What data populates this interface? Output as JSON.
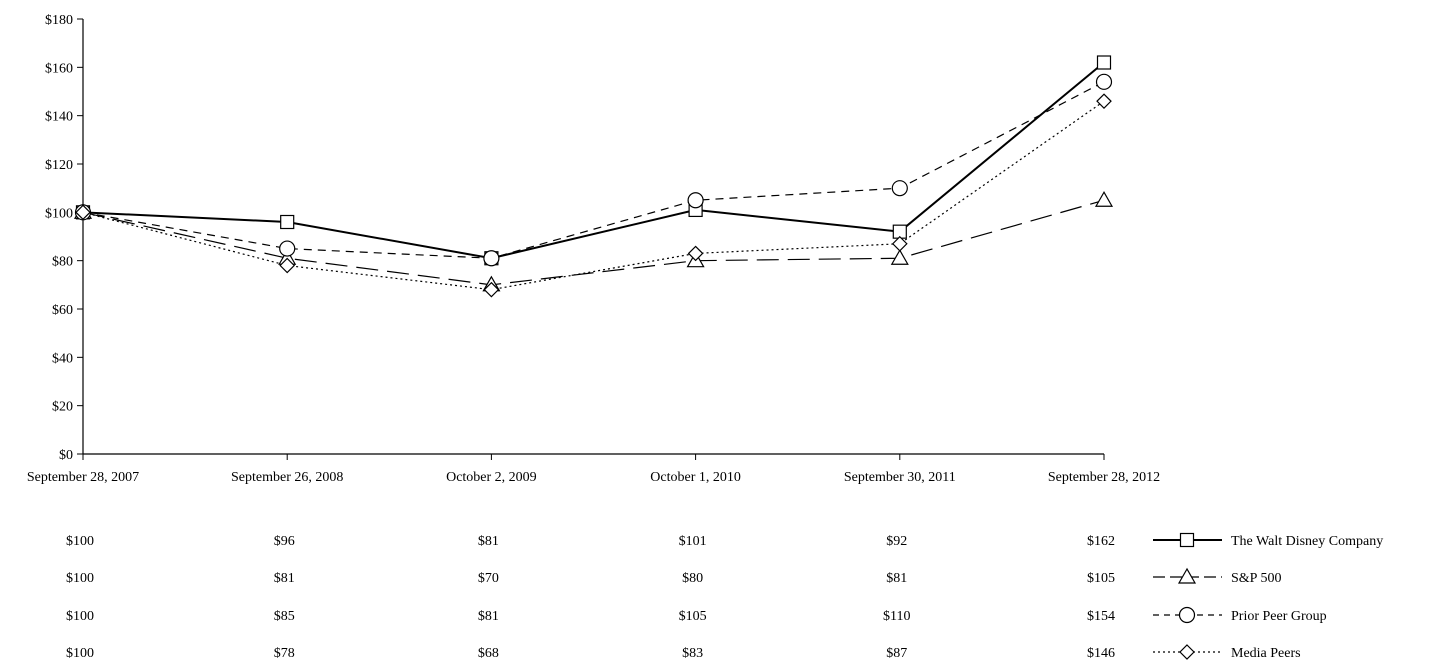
{
  "chart_data": {
    "type": "line",
    "title": "",
    "xlabel": "",
    "ylabel": "",
    "categories": [
      "September 28, 2007",
      "September 26, 2008",
      "October 2, 2009",
      "October 1, 2010",
      "September 30, 2011",
      "September 28, 2012"
    ],
    "ylim": [
      0,
      180
    ],
    "yticks": [
      "$0",
      "$20",
      "$40",
      "$60",
      "$80",
      "$100",
      "$120",
      "$140",
      "$160",
      "$180"
    ],
    "grid": false,
    "legend": "right of data table",
    "series": [
      {
        "name": "The Walt Disney Company",
        "marker": "square",
        "line": "solid",
        "values": [
          100,
          96,
          81,
          101,
          92,
          162
        ],
        "labels": [
          "$100",
          "$96",
          "$81",
          "$101",
          "$92",
          "$162"
        ]
      },
      {
        "name": "S&P 500",
        "marker": "triangle",
        "line": "long-dash",
        "values": [
          100,
          81,
          70,
          80,
          81,
          105
        ],
        "labels": [
          "$100",
          "$81",
          "$70",
          "$80",
          "$81",
          "$105"
        ]
      },
      {
        "name": "Prior Peer Group",
        "marker": "circle",
        "line": "dash",
        "values": [
          100,
          85,
          81,
          105,
          110,
          154
        ],
        "labels": [
          "$100",
          "$85",
          "$81",
          "$105",
          "$110",
          "$154"
        ]
      },
      {
        "name": "Media Peers",
        "marker": "diamond",
        "line": "dotted",
        "values": [
          100,
          78,
          68,
          83,
          87,
          146
        ],
        "labels": [
          "$100",
          "$78",
          "$68",
          "$83",
          "$87",
          "$146"
        ]
      }
    ]
  }
}
